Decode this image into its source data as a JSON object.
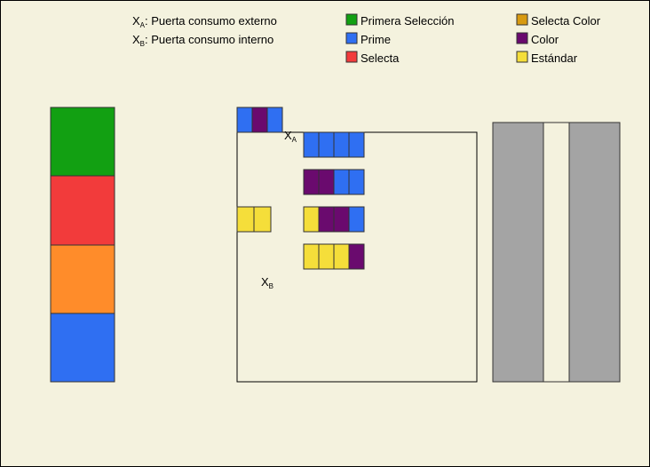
{
  "colors": {
    "background": "#F4F2DE",
    "primera_seleccion": "#12A012",
    "selecta": "#F23B3B",
    "selecta_color": "#FF8C2A",
    "prime": "#2F6FF2",
    "color": "#6A0A6E",
    "estandar": "#F5DE3A",
    "gray": "#A4A4A4",
    "selecta_color_swatch": "#D89A10"
  },
  "legend": {
    "xa_symbol": "X",
    "xa_sub": "A",
    "xa_text": ": Puerta consumo externo",
    "xb_symbol": "X",
    "xb_sub": "B",
    "xb_text": ": Puerta consumo interno",
    "items": [
      {
        "label": "Primera Selección",
        "color_key": "primera_seleccion"
      },
      {
        "label": "Prime",
        "color_key": "prime"
      },
      {
        "label": "Selecta",
        "color_key": "selecta"
      },
      {
        "label": "Selecta Color",
        "color_key": "selecta_color_swatch"
      },
      {
        "label": "Color",
        "color_key": "color"
      },
      {
        "label": "Estándar",
        "color_key": "estandar"
      }
    ]
  },
  "left_stack": [
    "primera_seleccion",
    "selecta",
    "selecta_color",
    "prime"
  ],
  "diagram": {
    "xa_marker": {
      "symbol": "X",
      "sub": "A"
    },
    "xb_marker": {
      "symbol": "X",
      "sub": "B"
    },
    "top_group": [
      "prime",
      "color",
      "prime"
    ],
    "left_group": [
      "estandar",
      "estandar"
    ],
    "rows": [
      [
        "prime",
        "prime",
        "prime",
        "prime"
      ],
      [
        "color",
        "color",
        "prime",
        "prime"
      ],
      [
        "estandar",
        "color",
        "color",
        "prime"
      ],
      [
        "estandar",
        "estandar",
        "estandar",
        "color"
      ]
    ]
  }
}
